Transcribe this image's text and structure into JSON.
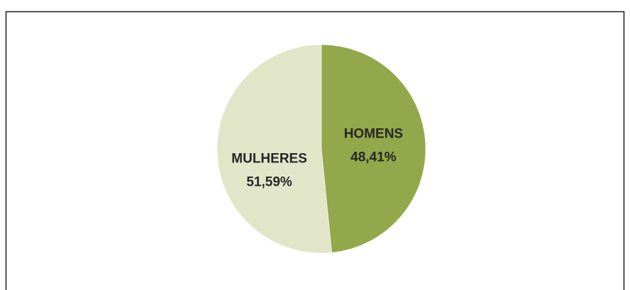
{
  "chart_data": {
    "type": "pie",
    "categories": [
      "HOMENS",
      "MULHERES"
    ],
    "values": [
      48.41,
      51.59
    ],
    "value_labels": [
      "48,41%",
      "51,59%"
    ],
    "colors": [
      "#93a84a",
      "#e1e6c9"
    ]
  }
}
